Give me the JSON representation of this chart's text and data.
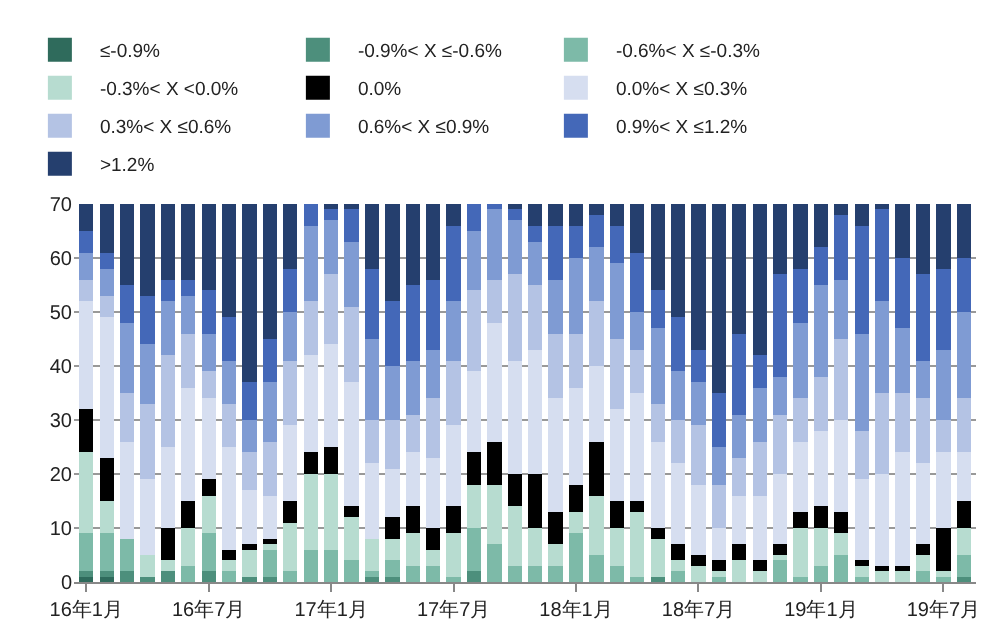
{
  "chart_data": {
    "type": "bar",
    "stacked": true,
    "categories": [
      "16年1月",
      null,
      null,
      null,
      null,
      null,
      "16年7月",
      null,
      null,
      null,
      null,
      null,
      "17年1月",
      null,
      null,
      null,
      null,
      null,
      "17年7月",
      null,
      null,
      null,
      null,
      null,
      "18年1月",
      null,
      null,
      null,
      null,
      null,
      "18年7月",
      null,
      null,
      null,
      null,
      null,
      "19年1月",
      null,
      null,
      null,
      null,
      null,
      "19年7月",
      null
    ],
    "series": [
      {
        "name": "≤-0.9%",
        "color": "#2f6b5c",
        "values": [
          1,
          1,
          0,
          0,
          0,
          0,
          0,
          0,
          0,
          0,
          0,
          0,
          0,
          0,
          0,
          0,
          0,
          0,
          0,
          0,
          0,
          0,
          0,
          0,
          0,
          0,
          0,
          0,
          0,
          0,
          0,
          0,
          0,
          0,
          0,
          0,
          0,
          0,
          0,
          0,
          0,
          0,
          0,
          0
        ]
      },
      {
        "name": "-0.9%< X ≤-0.6%",
        "color": "#4d8f7c",
        "values": [
          1,
          1,
          2,
          1,
          2,
          0,
          2,
          0,
          1,
          1,
          0,
          0,
          0,
          0,
          1,
          1,
          0,
          0,
          0,
          2,
          0,
          0,
          0,
          0,
          0,
          0,
          0,
          0,
          1,
          0,
          0,
          0,
          0,
          0,
          0,
          0,
          0,
          0,
          0,
          0,
          0,
          0,
          0,
          1
        ]
      },
      {
        "name": "-0.6%< X ≤-0.3%",
        "color": "#7dbaa8",
        "values": [
          7,
          7,
          6,
          0,
          0,
          3,
          7,
          2,
          0,
          5,
          2,
          6,
          6,
          4,
          1,
          3,
          3,
          3,
          1,
          8,
          7,
          3,
          3,
          3,
          9,
          5,
          3,
          1,
          0,
          2,
          0,
          1,
          0,
          0,
          4,
          1,
          3,
          5,
          1,
          0,
          0,
          2,
          1,
          4
        ]
      },
      {
        "name": "-0.3%< X <0.0%",
        "color": "#b7dcd0",
        "values": [
          15,
          6,
          0,
          4,
          2,
          7,
          7,
          2,
          5,
          1,
          9,
          14,
          14,
          8,
          6,
          4,
          6,
          3,
          8,
          8,
          11,
          11,
          7,
          4,
          4,
          11,
          7,
          12,
          7,
          2,
          3,
          1,
          4,
          2,
          1,
          9,
          7,
          4,
          2,
          2,
          2,
          3,
          1,
          5
        ]
      },
      {
        "name": "0.0%",
        "color": "#000000",
        "values": [
          8,
          8,
          0,
          0,
          6,
          5,
          3,
          2,
          1,
          1,
          4,
          4,
          5,
          2,
          0,
          4,
          5,
          4,
          5,
          6,
          8,
          6,
          10,
          6,
          5,
          10,
          5,
          2,
          2,
          3,
          2,
          2,
          3,
          2,
          2,
          3,
          4,
          4,
          1,
          1,
          1,
          2,
          8,
          5
        ]
      },
      {
        "name": "0.0%< X ≤0.3%",
        "color": "#d6def0",
        "values": [
          20,
          26,
          18,
          14,
          15,
          21,
          15,
          19,
          10,
          8,
          14,
          18,
          19,
          23,
          14,
          9,
          10,
          13,
          15,
          15,
          22,
          21,
          23,
          21,
          18,
          14,
          17,
          20,
          16,
          15,
          13,
          6,
          9,
          12,
          13,
          13,
          14,
          17,
          15,
          17,
          21,
          15,
          14,
          9
        ]
      },
      {
        "name": "0.3%< X ≤0.6%",
        "color": "#b4c3e4",
        "values": [
          4,
          4,
          9,
          14,
          17,
          10,
          5,
          8,
          7,
          10,
          12,
          10,
          13,
          14,
          8,
          9,
          7,
          11,
          12,
          15,
          8,
          16,
          12,
          12,
          10,
          12,
          13,
          8,
          7,
          8,
          11,
          8,
          7,
          10,
          11,
          8,
          10,
          15,
          9,
          15,
          11,
          12,
          6,
          10
        ]
      },
      {
        "name": "0.6%< X ≤0.9%",
        "color": "#7f9bd3",
        "values": [
          5,
          5,
          13,
          11,
          10,
          7,
          7,
          8,
          6,
          11,
          9,
          14,
          10,
          12,
          15,
          10,
          10,
          9,
          11,
          11,
          13,
          10,
          8,
          10,
          14,
          10,
          14,
          7,
          14,
          9,
          8,
          7,
          8,
          10,
          7,
          14,
          17,
          11,
          18,
          17,
          12,
          7,
          13,
          16
        ]
      },
      {
        "name": "0.9%< X ≤1.2%",
        "color": "#4468b8",
        "values": [
          4,
          3,
          7,
          9,
          4,
          3,
          8,
          8,
          7,
          8,
          8,
          4,
          2,
          6,
          13,
          12,
          14,
          13,
          14,
          5,
          1,
          2,
          3,
          10,
          6,
          6,
          7,
          11,
          7,
          10,
          6,
          10,
          15,
          6,
          19,
          10,
          7,
          12,
          20,
          17,
          13,
          16,
          15,
          10
        ]
      },
      {
        "name": ">1.2%",
        "color": "#253f6e",
        "values": [
          5,
          9,
          15,
          17,
          14,
          14,
          16,
          21,
          33,
          25,
          12,
          0,
          1,
          1,
          12,
          18,
          15,
          14,
          4,
          0,
          0,
          1,
          4,
          4,
          4,
          2,
          4,
          9,
          16,
          21,
          27,
          35,
          24,
          28,
          13,
          12,
          8,
          2,
          4,
          1,
          10,
          13,
          12,
          10
        ]
      }
    ],
    "ylim": [
      0,
      70
    ],
    "yticks": [
      0,
      10,
      20,
      30,
      40,
      50,
      60,
      70
    ],
    "grid": "y",
    "legend": "top"
  }
}
